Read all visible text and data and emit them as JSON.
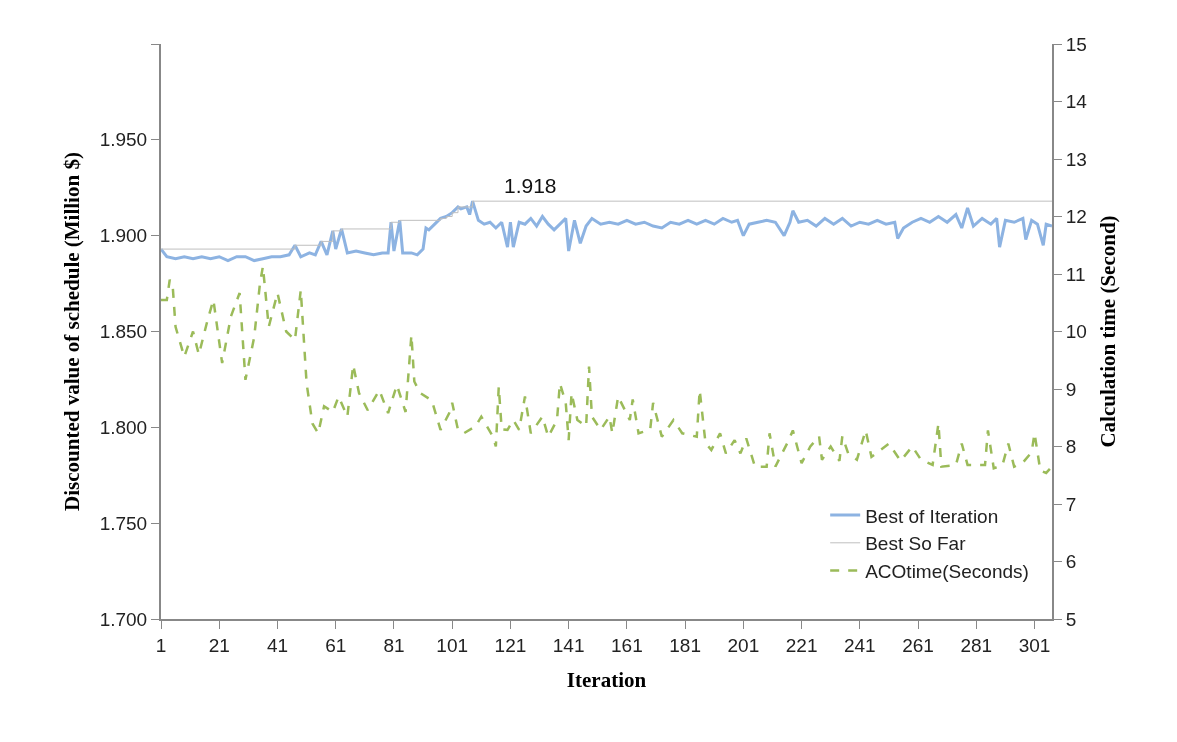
{
  "chart_data": {
    "type": "line",
    "xlabel": "Iteration",
    "ylabel": "Discounted value of schedule (Million $)",
    "y2label": "Calculation time (Second)",
    "xlim": [
      1,
      307
    ],
    "xticks": [
      1,
      21,
      41,
      61,
      81,
      101,
      121,
      141,
      161,
      181,
      201,
      221,
      241,
      261,
      281,
      301
    ],
    "ylim": [
      1.7,
      2.0
    ],
    "yticks": [
      {
        "value": 1.7,
        "label": "1.700"
      },
      {
        "value": 1.75,
        "label": "1.750"
      },
      {
        "value": 1.8,
        "label": "1.800"
      },
      {
        "value": 1.85,
        "label": "1.850"
      },
      {
        "value": 1.9,
        "label": "1.900"
      },
      {
        "value": 1.95,
        "label": "1.950"
      },
      {
        "value": 2.0,
        "label": null
      }
    ],
    "y2lim": [
      5,
      15
    ],
    "y2ticks": [
      5,
      6,
      7,
      8,
      9,
      10,
      11,
      12,
      13,
      14,
      15
    ],
    "grid": false,
    "legend": "bottom right",
    "marker": "none",
    "annotations": [
      {
        "text": "1.918",
        "x": 128,
        "y": 1.918
      }
    ],
    "series": [
      {
        "name": "Best of Iteration",
        "color": "#8db3e2",
        "line_style": "solid",
        "x": [
          1,
          3,
          6,
          9,
          12,
          15,
          18,
          21,
          24,
          27,
          30,
          33,
          36,
          39,
          42,
          45,
          47,
          49,
          52,
          54,
          56,
          58,
          60,
          61,
          63,
          65,
          68,
          71,
          74,
          77,
          79,
          80,
          81,
          83,
          84,
          87,
          89,
          91,
          92,
          93,
          95,
          97,
          99,
          101,
          103,
          104,
          106,
          107,
          108,
          110,
          112,
          114,
          116,
          118,
          120,
          121,
          122,
          124,
          126,
          128,
          130,
          132,
          134,
          136,
          138,
          140,
          141,
          143,
          145,
          147,
          149,
          152,
          155,
          158,
          161,
          164,
          167,
          170,
          173,
          176,
          179,
          182,
          185,
          188,
          191,
          194,
          197,
          199,
          201,
          203,
          206,
          209,
          212,
          215,
          217,
          218,
          220,
          223,
          226,
          229,
          232,
          235,
          238,
          241,
          244,
          247,
          250,
          253,
          254,
          256,
          259,
          262,
          265,
          268,
          271,
          274,
          276,
          278,
          280,
          283,
          286,
          288,
          289,
          291,
          294,
          297,
          298,
          300,
          302,
          304,
          305,
          307
        ],
        "values": [
          1.893,
          1.889,
          1.888,
          1.889,
          1.888,
          1.889,
          1.888,
          1.889,
          1.887,
          1.889,
          1.889,
          1.887,
          1.888,
          1.889,
          1.889,
          1.89,
          1.895,
          1.889,
          1.891,
          1.89,
          1.897,
          1.89,
          1.9025,
          1.893,
          1.9035,
          1.891,
          1.892,
          1.891,
          1.89,
          1.891,
          1.891,
          1.907,
          1.892,
          1.908,
          1.891,
          1.891,
          1.89,
          1.893,
          1.904,
          1.903,
          1.906,
          1.909,
          1.91,
          1.912,
          1.915,
          1.914,
          1.915,
          1.911,
          1.918,
          1.908,
          1.906,
          1.907,
          1.904,
          1.907,
          1.894,
          1.907,
          1.894,
          1.907,
          1.906,
          1.909,
          1.905,
          1.91,
          1.906,
          1.903,
          1.906,
          1.909,
          1.892,
          1.908,
          1.896,
          1.905,
          1.909,
          1.906,
          1.907,
          1.906,
          1.908,
          1.906,
          1.907,
          1.905,
          1.904,
          1.907,
          1.906,
          1.908,
          1.906,
          1.908,
          1.906,
          1.909,
          1.907,
          1.908,
          1.9,
          1.906,
          1.907,
          1.908,
          1.907,
          1.9,
          1.907,
          1.913,
          1.907,
          1.908,
          1.905,
          1.909,
          1.906,
          1.909,
          1.905,
          1.907,
          1.906,
          1.908,
          1.906,
          1.907,
          1.8985,
          1.904,
          1.907,
          1.909,
          1.907,
          1.91,
          1.907,
          1.911,
          1.904,
          1.9145,
          1.905,
          1.909,
          1.906,
          1.909,
          1.894,
          1.908,
          1.907,
          1.909,
          1.898,
          1.908,
          1.906,
          1.895,
          1.906,
          1.905
        ]
      },
      {
        "name": "Best So Far",
        "type": "step",
        "color": "#bfbfbf",
        "line_style": "solid",
        "x": [
          1,
          47,
          56,
          60,
          63,
          80,
          83,
          97,
          99,
          101,
          103,
          108,
          307
        ],
        "values": [
          1.893,
          1.895,
          1.897,
          1.9025,
          1.9035,
          1.907,
          1.908,
          1.909,
          1.91,
          1.912,
          1.915,
          1.918,
          1.918
        ]
      },
      {
        "name": "ACOtime(Seconds)",
        "axis": "y2",
        "color": "#9bbb59",
        "line_style": "dashed",
        "x": [
          1,
          3,
          4,
          5,
          6,
          9,
          12,
          14,
          17,
          19,
          22,
          25,
          28,
          30,
          33,
          35,
          36,
          38,
          41,
          44,
          47,
          49,
          51,
          53,
          55,
          57,
          60,
          62,
          65,
          67,
          69,
          72,
          76,
          79,
          82,
          85,
          87,
          88,
          90,
          94,
          97,
          100,
          101,
          103,
          105,
          109,
          111,
          115,
          116,
          117,
          118,
          120,
          122,
          124,
          126,
          128,
          132,
          134,
          137,
          138,
          140,
          141,
          142,
          144,
          147,
          148,
          149,
          152,
          155,
          156,
          158,
          162,
          163,
          165,
          169,
          170,
          173,
          177,
          180,
          185,
          186,
          188,
          190,
          193,
          195,
          198,
          200,
          202,
          205,
          209,
          210,
          212,
          216,
          218,
          221,
          224,
          227,
          228,
          231,
          234,
          235,
          237,
          240,
          243,
          245,
          251,
          255,
          259,
          262,
          266,
          268,
          269,
          274,
          276,
          278,
          284,
          285,
          287,
          290,
          292,
          294,
          297,
          300,
          301,
          303,
          305,
          307
        ],
        "values": [
          10.55,
          10.55,
          10.9,
          10.8,
          10.08,
          9.56,
          10.0,
          9.6,
          10.2,
          10.55,
          9.45,
          10.26,
          10.67,
          9.16,
          9.9,
          10.84,
          11.13,
          10.08,
          10.67,
          10.0,
          9.85,
          10.72,
          9.1,
          8.4,
          8.23,
          8.7,
          8.6,
          8.87,
          8.52,
          9.42,
          8.93,
          8.63,
          8.98,
          8.58,
          9.07,
          8.6,
          9.94,
          9.13,
          8.93,
          8.8,
          8.29,
          8.58,
          8.76,
          8.29,
          8.23,
          8.35,
          8.52,
          8.17,
          8.0,
          9.04,
          8.3,
          8.29,
          8.46,
          8.29,
          8.87,
          8.23,
          8.52,
          8.17,
          8.46,
          9.1,
          8.76,
          8.11,
          8.93,
          8.46,
          8.35,
          9.39,
          8.52,
          8.29,
          8.52,
          8.23,
          8.87,
          8.46,
          8.82,
          8.23,
          8.29,
          8.76,
          8.17,
          8.46,
          8.23,
          8.17,
          8.98,
          8.06,
          7.94,
          8.23,
          7.88,
          8.11,
          7.88,
          8.14,
          7.65,
          7.65,
          8.23,
          7.65,
          8.05,
          8.28,
          7.71,
          8.0,
          8.18,
          7.77,
          8.0,
          7.75,
          8.18,
          7.88,
          7.77,
          8.28,
          7.82,
          8.05,
          7.75,
          8.0,
          7.77,
          7.68,
          8.4,
          7.65,
          7.68,
          8.05,
          7.68,
          7.68,
          8.28,
          7.62,
          7.68,
          8.05,
          7.65,
          7.72,
          7.9,
          8.23,
          7.58,
          7.54,
          7.65
        ]
      }
    ]
  }
}
